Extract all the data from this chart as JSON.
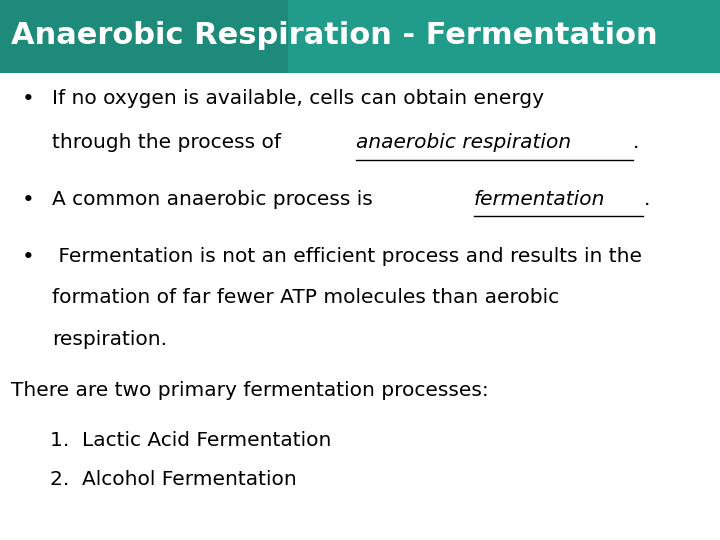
{
  "title": "Anaerobic Respiration - Fermentation",
  "title_color": "#FFFFFF",
  "body_bg_color": "#FFFFFF",
  "title_fontsize": 22,
  "body_fontsize": 14.5,
  "paragraph": "There are two primary fermentation processes:",
  "numbered_list": [
    "Lactic Acid Fermentation",
    "Alcohol Fermentation"
  ],
  "text_color": "#000000",
  "title_bar_color": "#1e8b7a",
  "title_bar_color2": "#26a896"
}
